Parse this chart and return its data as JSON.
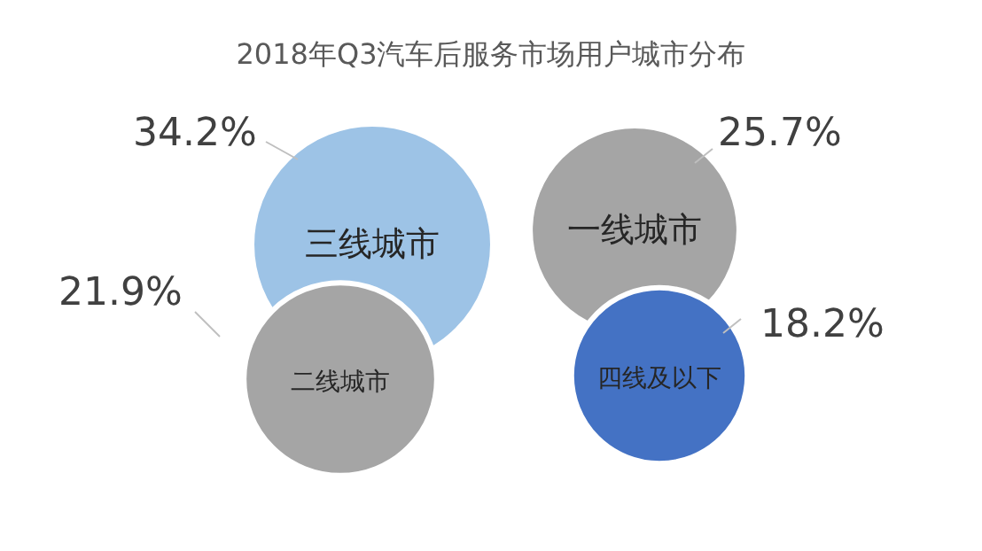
{
  "chart_data": {
    "type": "other",
    "title": "2018年Q3汽车后服务市场用户城市分布",
    "categories": [
      "三线城市",
      "一线城市",
      "二线城市",
      "四线及以下"
    ],
    "values": [
      34.2,
      25.7,
      21.9,
      18.2
    ],
    "value_labels": [
      "34.2%",
      "25.7%",
      "21.9%",
      "18.2%"
    ],
    "colors": [
      "#9dc3e6",
      "#a5a5a5",
      "#a5a5a5",
      "#4472c4"
    ]
  }
}
